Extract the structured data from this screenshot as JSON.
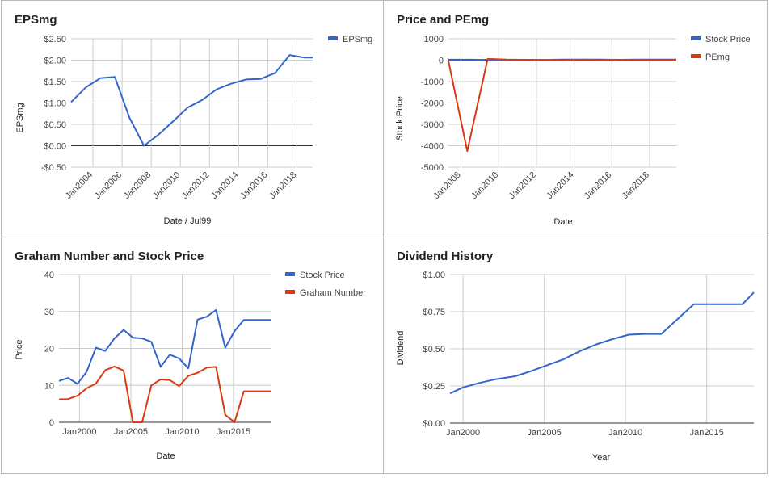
{
  "chart_data": [
    {
      "type": "line",
      "title": "EPSmg",
      "xlabel": "Date / Jul99",
      "ylabel": "EPSmg",
      "x_range": [
        "2002-07",
        "2019-02"
      ],
      "ylim": [
        -0.5,
        2.5
      ],
      "y_ticks": [
        -0.5,
        0,
        0.5,
        1,
        1.5,
        2,
        2.5
      ],
      "y_tick_labels": [
        "-$0.50",
        "$0.00",
        "$0.50",
        "$1.00",
        "$1.50",
        "$2.00",
        "$2.50"
      ],
      "x_ticks": [
        "2004-01",
        "2006-01",
        "2008-01",
        "2010-01",
        "2012-01",
        "2014-01",
        "2016-01",
        "2018-01"
      ],
      "x_tick_labels": [
        "Jan2004",
        "Jan2006",
        "Jan2008",
        "Jan2010",
        "Jan2012",
        "Jan2014",
        "Jan2016",
        "Jan2018"
      ],
      "x_labels_rotated": true,
      "grid": true,
      "legend": "right",
      "series": [
        {
          "name": "EPSmg",
          "color": "#3366cc",
          "x": [
            "2002-07",
            "2003-07",
            "2004-07",
            "2005-07",
            "2006-07",
            "2007-07",
            "2008-07",
            "2009-07",
            "2010-07",
            "2011-07",
            "2012-07",
            "2013-07",
            "2014-07",
            "2015-07",
            "2016-07",
            "2017-07",
            "2018-07",
            "2019-02"
          ],
          "y": [
            1.02,
            1.36,
            1.58,
            1.61,
            0.66,
            0.0,
            0.26,
            0.57,
            0.89,
            1.07,
            1.32,
            1.45,
            1.55,
            1.56,
            1.7,
            2.12,
            2.06,
            2.06
          ]
        }
      ]
    },
    {
      "type": "line",
      "title": "Price and PEmg",
      "xlabel": "Date",
      "ylabel": "Stock Price",
      "x_range": [
        "2007-05",
        "2019-06"
      ],
      "ylim": [
        -5000,
        1000
      ],
      "y_ticks": [
        -5000,
        -4000,
        -3000,
        -2000,
        -1000,
        0,
        1000
      ],
      "y_tick_labels": [
        "-5000",
        "-4000",
        "-3000",
        "-2000",
        "-1000",
        "0",
        "1000"
      ],
      "x_ticks": [
        "2008-01",
        "2010-01",
        "2012-01",
        "2014-01",
        "2016-01",
        "2018-01"
      ],
      "x_tick_labels": [
        "Jan2008",
        "Jan2010",
        "Jan2012",
        "Jan2014",
        "Jan2016",
        "Jan2018"
      ],
      "x_labels_rotated": true,
      "grid": true,
      "legend": "right",
      "series": [
        {
          "name": "Stock Price",
          "color": "#3366cc",
          "x": [
            "2007-05",
            "2008-06",
            "2009-06",
            "2010-06",
            "2011-06",
            "2012-06",
            "2013-06",
            "2014-06",
            "2015-06",
            "2016-06",
            "2017-06",
            "2018-06",
            "2019-06"
          ],
          "y": [
            22,
            22,
            15,
            18,
            17,
            15,
            28,
            28,
            30,
            20,
            25,
            27,
            27
          ]
        },
        {
          "name": "PEmg",
          "color": "#dc3912",
          "x": [
            "2007-05",
            "2008-05",
            "2009-06",
            "2010-06",
            "2011-06",
            "2012-06",
            "2013-06",
            "2014-06",
            "2015-06",
            "2016-06",
            "2017-06",
            "2018-06",
            "2019-06"
          ],
          "y": [
            -40,
            -4250,
            60,
            25,
            18,
            10,
            10,
            22,
            20,
            12,
            5,
            10,
            10
          ]
        }
      ]
    },
    {
      "type": "line",
      "title": "Graham Number and Stock Price",
      "xlabel": "Date",
      "ylabel": "Price",
      "x_range": [
        1998,
        2018.7
      ],
      "ylim": [
        0,
        40
      ],
      "y_ticks": [
        0,
        10,
        20,
        30,
        40
      ],
      "y_tick_labels": [
        "0",
        "10",
        "20",
        "30",
        "40"
      ],
      "x_ticks": [
        2000,
        2005,
        2010,
        2015
      ],
      "x_tick_labels": [
        "Jan2000",
        "Jan2005",
        "Jan2010",
        "Jan2015"
      ],
      "grid": true,
      "legend": "right",
      "series": [
        {
          "name": "Stock Price",
          "color": "#3366cc",
          "x": [
            1998.0,
            1998.9,
            1999.8,
            2000.7,
            2001.6,
            2002.5,
            2003.4,
            2004.3,
            2005.2,
            2006.1,
            2007.0,
            2007.9,
            2008.8,
            2009.7,
            2010.6,
            2011.5,
            2012.4,
            2013.3,
            2014.2,
            2015.1,
            2016.0,
            2016.9,
            2017.8,
            2018.7
          ],
          "y": [
            11.2,
            12.0,
            10.4,
            13.7,
            20.2,
            19.3,
            22.7,
            25.0,
            22.9,
            22.7,
            21.8,
            15.0,
            18.3,
            17.3,
            14.6,
            27.8,
            28.6,
            30.4,
            20.2,
            24.7,
            27.7,
            27.7,
            27.7,
            27.7
          ]
        },
        {
          "name": "Graham Number",
          "color": "#dc3912",
          "x": [
            1998.0,
            1998.9,
            1999.8,
            2000.7,
            2001.6,
            2002.5,
            2003.4,
            2004.3,
            2005.2,
            2006.1,
            2007.0,
            2007.9,
            2008.8,
            2009.7,
            2010.6,
            2011.5,
            2012.4,
            2013.3,
            2014.2,
            2015.1,
            2016.0,
            2016.9,
            2017.8,
            2018.7
          ],
          "y": [
            6.2,
            6.3,
            7.2,
            9.2,
            10.5,
            14.1,
            15.1,
            14.0,
            0.0,
            0.0,
            10.0,
            11.6,
            11.4,
            9.8,
            12.6,
            13.4,
            14.8,
            15.0,
            2.0,
            0.0,
            8.4,
            8.4,
            8.4,
            8.4
          ]
        }
      ]
    },
    {
      "type": "line",
      "title": "Dividend History",
      "xlabel": "Year",
      "ylabel": "Dividend",
      "x_range": [
        1999.2,
        2017.9
      ],
      "ylim": [
        0,
        1.0
      ],
      "y_ticks": [
        0,
        0.25,
        0.5,
        0.75,
        1.0
      ],
      "y_tick_labels": [
        "$0.00",
        "$0.25",
        "$0.50",
        "$0.75",
        "$1.00"
      ],
      "x_ticks": [
        2000,
        2005,
        2010,
        2015
      ],
      "x_tick_labels": [
        "Jan2000",
        "Jan2005",
        "Jan2010",
        "Jan2015"
      ],
      "grid": true,
      "legend": "none",
      "series": [
        {
          "name": "",
          "color": "#3366cc",
          "x": [
            1999.2,
            2000.0,
            2001.0,
            2002.0,
            2003.2,
            2004.2,
            2005.2,
            2006.2,
            2007.2,
            2008.2,
            2009.2,
            2010.2,
            2011.2,
            2012.2,
            2013.2,
            2014.2,
            2015.2,
            2016.2,
            2017.2,
            2017.9
          ],
          "y": [
            0.2,
            0.24,
            0.27,
            0.295,
            0.315,
            0.35,
            0.39,
            0.43,
            0.485,
            0.53,
            0.565,
            0.595,
            0.6,
            0.6,
            0.7,
            0.8,
            0.8,
            0.8,
            0.8,
            0.88
          ]
        }
      ]
    }
  ]
}
